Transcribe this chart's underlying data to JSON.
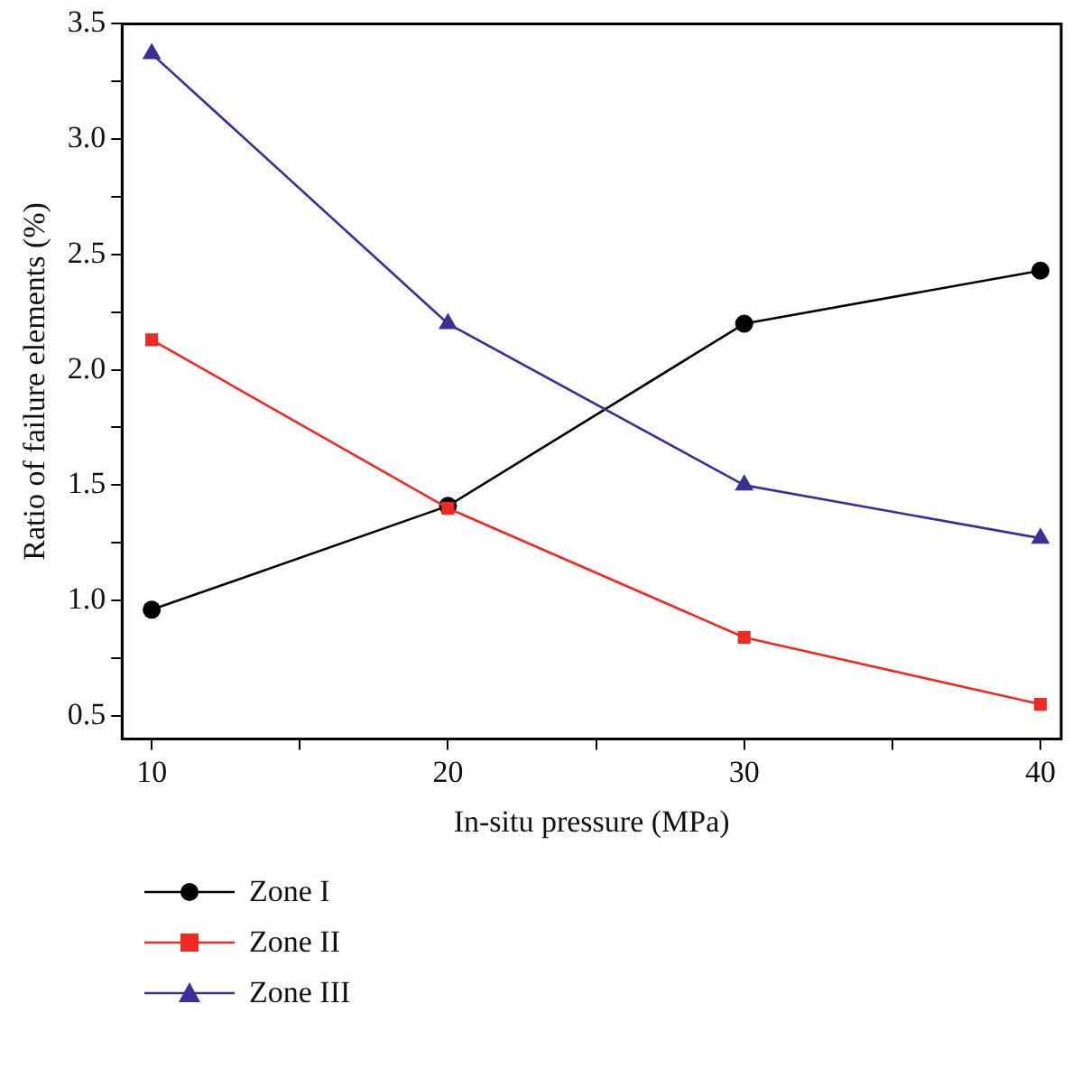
{
  "chart_data": {
    "type": "line",
    "xlabel": "In-situ pressure (MPa)",
    "ylabel": "Ratio of failure elements (%)",
    "x": [
      10,
      20,
      30,
      40
    ],
    "series": [
      {
        "name": "Zone I",
        "color": "#000000",
        "marker": "circle",
        "values": [
          0.96,
          1.41,
          2.2,
          2.43
        ]
      },
      {
        "name": "Zone II",
        "color": "#ee2a24",
        "marker": "square",
        "values": [
          2.13,
          1.4,
          0.84,
          0.55
        ]
      },
      {
        "name": "Zone III",
        "color": "#3a2f94",
        "marker": "triangle",
        "values": [
          3.37,
          2.2,
          1.5,
          1.27
        ]
      }
    ],
    "xlim": [
      9,
      40.7
    ],
    "xticks": [
      10,
      {
        "value": 15,
        "label": null
      },
      20,
      {
        "value": 25,
        "label": null
      },
      30,
      {
        "value": 35,
        "label": null
      },
      40
    ],
    "ylim": [
      0.4,
      3.5
    ],
    "yticks": [
      0.5,
      {
        "value": 0.75,
        "label": null
      },
      {
        "value": 1,
        "label": "1.0"
      },
      {
        "value": 1.25,
        "label": null
      },
      1.5,
      {
        "value": 1.75,
        "label": null
      },
      {
        "value": 2,
        "label": "2.0"
      },
      {
        "value": 2.25,
        "label": null
      },
      2.5,
      {
        "value": 2.75,
        "label": null
      },
      {
        "value": 3,
        "label": "3.0"
      },
      {
        "value": 3.25,
        "label": null
      },
      3.5
    ],
    "grid": false,
    "legend": "bottom left",
    "line_style": "solid"
  }
}
